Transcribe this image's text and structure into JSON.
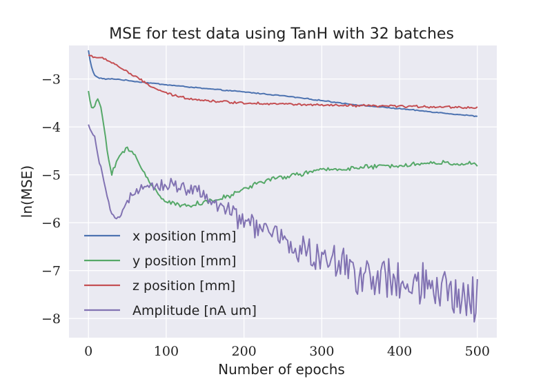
{
  "chart_data": {
    "type": "line",
    "title": "MSE for test data using TanH with 32 batches",
    "xlabel": "Number of epochs",
    "ylabel": "ln(MSE)",
    "xlim": [
      -25,
      525
    ],
    "ylim": [
      -8.4,
      -2.3
    ],
    "xticks": [
      0,
      100,
      200,
      300,
      400,
      500
    ],
    "yticks": [
      -3,
      -4,
      -5,
      -6,
      -7,
      -8
    ],
    "xtick_labels": [
      "0",
      "100",
      "200",
      "300",
      "400",
      "500"
    ],
    "ytick_labels": [
      "−3",
      "−4",
      "−5",
      "−6",
      "−7",
      "−8"
    ],
    "grid": true,
    "legend_position": "lower-left",
    "series": [
      {
        "name": "x position [mm]",
        "color": "#4c72b0",
        "noise": 0.008,
        "x": [
          0,
          3,
          7,
          12,
          20,
          35,
          60,
          100,
          150,
          200,
          250,
          300,
          350,
          400,
          450,
          500
        ],
        "y": [
          -2.4,
          -2.7,
          -2.9,
          -2.97,
          -3.0,
          -3.0,
          -3.05,
          -3.12,
          -3.2,
          -3.27,
          -3.35,
          -3.45,
          -3.55,
          -3.62,
          -3.7,
          -3.78
        ]
      },
      {
        "name": "y position [mm]",
        "color": "#55a868",
        "noise": 0.04,
        "x": [
          0,
          5,
          10,
          15,
          20,
          25,
          30,
          40,
          50,
          60,
          70,
          80,
          90,
          100,
          120,
          140,
          160,
          180,
          200,
          220,
          250,
          300,
          350,
          400,
          450,
          500
        ],
        "y": [
          -3.25,
          -3.7,
          -3.45,
          -3.5,
          -4.0,
          -4.6,
          -4.95,
          -4.6,
          -4.45,
          -4.6,
          -4.9,
          -5.2,
          -5.4,
          -5.55,
          -5.65,
          -5.6,
          -5.55,
          -5.45,
          -5.3,
          -5.15,
          -5.05,
          -4.9,
          -4.85,
          -4.8,
          -4.75,
          -4.78
        ]
      },
      {
        "name": "z position [mm]",
        "color": "#c44e52",
        "noise": 0.02,
        "x": [
          0,
          10,
          20,
          30,
          45,
          60,
          80,
          100,
          120,
          150,
          180,
          200,
          250,
          300,
          350,
          400,
          450,
          500
        ],
        "y": [
          -2.5,
          -2.55,
          -2.58,
          -2.65,
          -2.8,
          -2.95,
          -3.15,
          -3.3,
          -3.38,
          -3.45,
          -3.48,
          -3.5,
          -3.52,
          -3.55,
          -3.56,
          -3.57,
          -3.58,
          -3.6
        ]
      },
      {
        "name": "Amplitude [nA um]",
        "color": "#8172b2",
        "noise": 0.02,
        "noise_growth": 0.45,
        "x": [
          0,
          3,
          8,
          12,
          18,
          24,
          30,
          35,
          40,
          45,
          55,
          70,
          85,
          100,
          115,
          130,
          150,
          170,
          200,
          230,
          260,
          300,
          350,
          400,
          450,
          500
        ],
        "y": [
          -3.95,
          -4.1,
          -4.2,
          -4.6,
          -5.0,
          -5.5,
          -5.8,
          -5.9,
          -5.85,
          -5.7,
          -5.45,
          -5.3,
          -5.25,
          -5.2,
          -5.2,
          -5.3,
          -5.45,
          -5.7,
          -5.95,
          -6.2,
          -6.45,
          -6.75,
          -7.05,
          -7.3,
          -7.45,
          -7.6
        ]
      }
    ]
  }
}
